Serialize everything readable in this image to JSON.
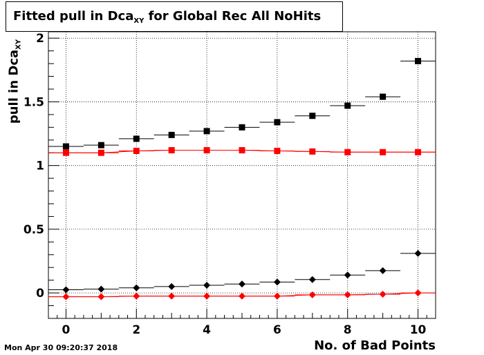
{
  "title": {
    "main": "Fitted pull in Dca",
    "sub": "XY",
    "rest": " for Global Rec All NoHits"
  },
  "datestamp": "Mon Apr 30 09:20:37 2018",
  "chart_data": {
    "type": "scatter",
    "title": "Fitted pull in Dca_XY for Global Rec All NoHits",
    "xlabel": "No. of Bad Points",
    "ylabel": "pull in Dca_XY",
    "xlim": [
      -0.5,
      10.5
    ],
    "ylim": [
      -0.2,
      2.05
    ],
    "xticks": [
      0,
      2,
      4,
      6,
      8,
      10
    ],
    "yticks": [
      0,
      0.5,
      1,
      1.5,
      2
    ],
    "ytick_labels": [
      "0",
      "0.5",
      "1",
      "1.5",
      "2"
    ],
    "grid": true,
    "x": [
      0,
      1,
      2,
      3,
      4,
      5,
      6,
      7,
      8,
      9,
      10
    ],
    "series": [
      {
        "marker": "square",
        "color": "#000000",
        "values": [
          1.15,
          1.16,
          1.21,
          1.24,
          1.27,
          1.3,
          1.34,
          1.39,
          1.47,
          1.54,
          1.82
        ]
      },
      {
        "marker": "square",
        "color": "#ff0000",
        "values": [
          1.1,
          1.1,
          1.115,
          1.12,
          1.12,
          1.12,
          1.115,
          1.11,
          1.105,
          1.105,
          1.105
        ]
      },
      {
        "marker": "diamond",
        "color": "#000000",
        "values": [
          0.025,
          0.03,
          0.04,
          0.05,
          0.06,
          0.07,
          0.085,
          0.105,
          0.14,
          0.175,
          0.31
        ]
      },
      {
        "marker": "diamond",
        "color": "#ff0000",
        "values": [
          -0.03,
          -0.03,
          -0.025,
          -0.025,
          -0.025,
          -0.025,
          -0.025,
          -0.015,
          -0.015,
          -0.01,
          0.0
        ]
      }
    ]
  }
}
